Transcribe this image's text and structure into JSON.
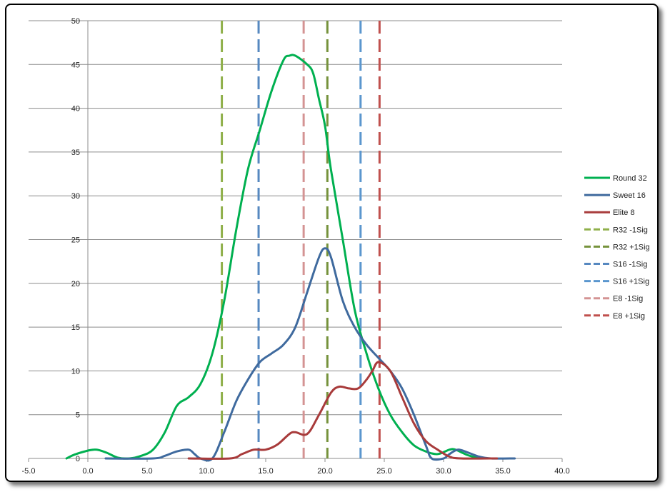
{
  "chart_data": {
    "type": "line",
    "title": "",
    "xlabel": "",
    "ylabel": "",
    "xlim": [
      -5,
      40
    ],
    "ylim": [
      0,
      50
    ],
    "x_tick_labels": [
      "-5.0",
      "0.0",
      "5.0",
      "10.0",
      "15.0",
      "20.0",
      "25.0",
      "30.0",
      "35.0",
      "40.0"
    ],
    "y_tick_labels": [
      "0",
      "5",
      "10",
      "15",
      "20",
      "25",
      "30",
      "35",
      "40",
      "45",
      "50"
    ],
    "grid": "horizontal",
    "legend_position": "right",
    "series": [
      {
        "name": "Round 32",
        "color": "#00b050",
        "style": "solid",
        "points": [
          [
            -1.8,
            0
          ],
          [
            -1,
            0.5
          ],
          [
            0.5,
            1
          ],
          [
            1.5,
            0.7
          ],
          [
            2.5,
            0.1
          ],
          [
            3.5,
            0
          ],
          [
            4.5,
            0.3
          ],
          [
            5.5,
            1
          ],
          [
            6.5,
            3
          ],
          [
            7.5,
            6
          ],
          [
            8.5,
            7
          ],
          [
            9.5,
            8.5
          ],
          [
            10.5,
            12
          ],
          [
            11.5,
            18
          ],
          [
            12.5,
            26
          ],
          [
            13.5,
            33
          ],
          [
            14.5,
            37.5
          ],
          [
            15.5,
            42
          ],
          [
            16.5,
            45.5
          ],
          [
            17,
            46
          ],
          [
            17.5,
            46
          ],
          [
            18.5,
            45
          ],
          [
            19,
            44
          ],
          [
            19.5,
            41
          ],
          [
            20,
            38
          ],
          [
            20.5,
            33
          ],
          [
            21.5,
            25
          ],
          [
            22.5,
            17
          ],
          [
            23.5,
            12
          ],
          [
            24.5,
            8
          ],
          [
            25.5,
            5
          ],
          [
            26.5,
            3
          ],
          [
            27.5,
            1.5
          ],
          [
            28.5,
            0.8
          ],
          [
            29.5,
            0.5
          ],
          [
            30.5,
            1
          ],
          [
            31,
            1
          ],
          [
            32,
            0.4
          ],
          [
            33,
            0
          ]
        ]
      },
      {
        "name": "Sweet 16",
        "color": "#3f6a9e",
        "style": "solid",
        "points": [
          [
            1.5,
            0
          ],
          [
            5.5,
            0
          ],
          [
            6.5,
            0.3
          ],
          [
            7.5,
            0.8
          ],
          [
            8.5,
            1
          ],
          [
            9,
            0.5
          ],
          [
            9.5,
            0
          ],
          [
            10.5,
            0
          ],
          [
            11.5,
            3
          ],
          [
            12.5,
            6.5
          ],
          [
            13.5,
            9
          ],
          [
            14.5,
            11
          ],
          [
            15.5,
            12
          ],
          [
            16.5,
            13
          ],
          [
            17.5,
            15
          ],
          [
            18.5,
            19
          ],
          [
            19.5,
            23
          ],
          [
            20,
            24
          ],
          [
            20.5,
            23
          ],
          [
            21.5,
            18
          ],
          [
            22.5,
            15
          ],
          [
            23.5,
            13
          ],
          [
            24.5,
            11.5
          ],
          [
            25.5,
            10
          ],
          [
            26.5,
            8
          ],
          [
            27.5,
            5
          ],
          [
            28.5,
            1.5
          ],
          [
            29,
            0
          ],
          [
            30,
            0
          ],
          [
            30.5,
            0.5
          ],
          [
            31.2,
            1
          ],
          [
            32,
            0.7
          ],
          [
            33,
            0.2
          ],
          [
            34,
            0
          ],
          [
            36,
            0
          ]
        ]
      },
      {
        "name": "Elite 8",
        "color": "#a83b3b",
        "style": "solid",
        "points": [
          [
            8.5,
            0
          ],
          [
            12,
            0
          ],
          [
            13,
            0.5
          ],
          [
            14,
            1
          ],
          [
            15,
            1
          ],
          [
            16,
            1.6
          ],
          [
            17,
            2.8
          ],
          [
            17.5,
            3
          ],
          [
            18.5,
            2.8
          ],
          [
            19.5,
            5
          ],
          [
            20.5,
            7.5
          ],
          [
            21.2,
            8.2
          ],
          [
            22,
            8
          ],
          [
            22.8,
            8
          ],
          [
            23.5,
            9
          ],
          [
            24,
            10
          ],
          [
            24.5,
            11
          ],
          [
            25.5,
            10
          ],
          [
            26.5,
            7
          ],
          [
            27.5,
            4
          ],
          [
            28.5,
            2
          ],
          [
            29.5,
            1
          ],
          [
            30.5,
            0.2
          ],
          [
            31.5,
            0
          ],
          [
            34.5,
            0
          ]
        ]
      }
    ],
    "vertical_lines": [
      {
        "name": "R32 -1Sig",
        "x": 11.3,
        "color": "#8fb04a"
      },
      {
        "name": "R32 +1Sig",
        "x": 20.2,
        "color": "#76923c"
      },
      {
        "name": "S16 -1Sig",
        "x": 14.4,
        "color": "#5688c0"
      },
      {
        "name": "S16 +1Sig",
        "x": 23.0,
        "color": "#5a96ce"
      },
      {
        "name": "E8 -1Sig",
        "x": 18.2,
        "color": "#d49393"
      },
      {
        "name": "E8 +1Sig",
        "x": 24.6,
        "color": "#c0504d"
      }
    ]
  }
}
